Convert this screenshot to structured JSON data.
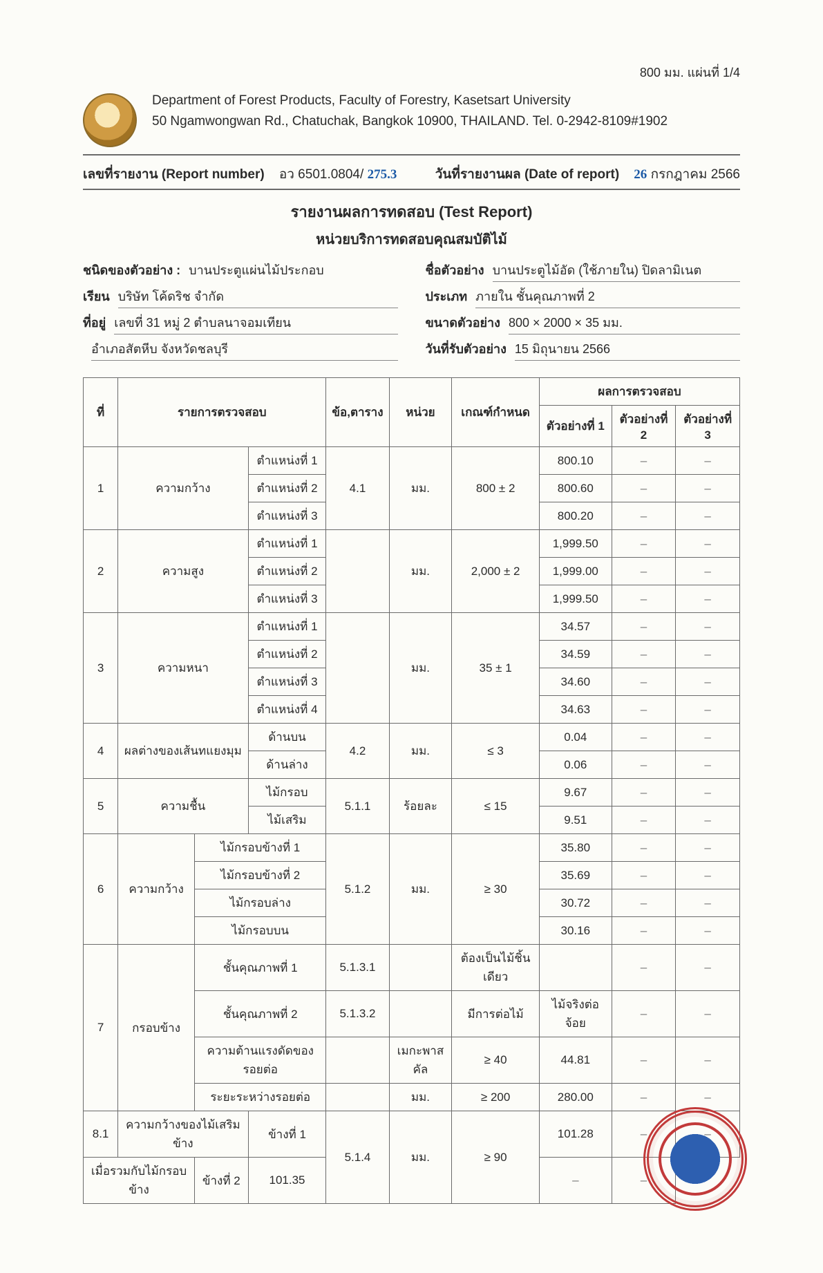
{
  "page_info": {
    "top_right": "800 มม.    แผ่นที่ 1/4"
  },
  "header": {
    "line1": "Department of Forest Products, Faculty of Forestry, Kasetsart University",
    "line2": "50 Ngamwongwan Rd., Chatuchak, Bangkok 10900, THAILAND. Tel. 0-2942-8109#1902"
  },
  "report_line": {
    "left_label": "เลขที่รายงาน (Report number)",
    "left_value_prefix": "อว 6501.0804/",
    "left_value_hand": "275.3",
    "right_label": "วันที่รายงานผล (Date of report)",
    "right_value_hand": "26",
    "right_value_suffix": " กรกฎาคม 2566"
  },
  "titles": {
    "t1": "รายงานผลการทดสอบ (Test Report)",
    "t2": "หน่วยบริการทดสอบคุณสมบัติไม้"
  },
  "meta_left": [
    {
      "label": "ชนิดของตัวอย่าง :",
      "value": "บานประตูแผ่นไม้ประกอบ"
    },
    {
      "label": "เรียน",
      "value": "บริษัท โค้ดริช จำกัด"
    },
    {
      "label": "ที่อยู่",
      "value": "เลขที่ 31 หมู่ 2 ตำบลนาจอมเทียน"
    },
    {
      "label": "",
      "value": "อำเภอสัตหีบ จังหวัดชลบุรี"
    }
  ],
  "meta_right": [
    {
      "label": "ชื่อตัวอย่าง",
      "value": "บานประตูไม้อัด (ใช้ภายใน) ปิดลามิเนต"
    },
    {
      "label": "ประเภท",
      "value": "ภายใน          ชั้นคุณภาพที่ 2"
    },
    {
      "label": "ขนาดตัวอย่าง",
      "value": "800 × 2000 × 35  มม."
    },
    {
      "label": "วันที่รับตัวอย่าง",
      "value": "15 มิถุนายน 2566"
    }
  ],
  "table": {
    "headers": {
      "no": "ที่",
      "item": "รายการตรวจสอบ",
      "clause": "ข้อ,ตาราง",
      "unit": "หน่วย",
      "criteria": "เกณฑ์กำหนด",
      "results": "ผลการตรวจสอบ",
      "s1": "ตัวอย่างที่ 1",
      "s2": "ตัวอย่างที่ 2",
      "s3": "ตัวอย่างที่ 3"
    },
    "rows": [
      {
        "no": "1",
        "item": "ความกว้าง",
        "sub": "ตำแหน่งที่ 1",
        "clause": "4.1",
        "unit": "มม.",
        "criteria": "800 ± 2",
        "s1": "800.10",
        "span_item": 3,
        "span_clause": 3,
        "span_unit": 3,
        "span_crit": 3
      },
      {
        "sub": "ตำแหน่งที่ 2",
        "s1": "800.60"
      },
      {
        "sub": "ตำแหน่งที่ 3",
        "s1": "800.20"
      },
      {
        "no": "2",
        "item": "ความสูง",
        "sub": "ตำแหน่งที่ 1",
        "clause": "",
        "unit": "มม.",
        "criteria": "2,000 ± 2",
        "s1": "1,999.50",
        "span_item": 3,
        "span_clause": 3,
        "span_unit": 3,
        "span_crit": 3
      },
      {
        "sub": "ตำแหน่งที่ 2",
        "s1": "1,999.00"
      },
      {
        "sub": "ตำแหน่งที่ 3",
        "s1": "1,999.50"
      },
      {
        "no": "3",
        "item": "ความหนา",
        "sub": "ตำแหน่งที่ 1",
        "clause": "",
        "unit": "มม.",
        "criteria": "35 ± 1",
        "s1": "34.57",
        "span_item": 4,
        "span_clause": 4,
        "span_unit": 4,
        "span_crit": 4
      },
      {
        "sub": "ตำแหน่งที่ 2",
        "s1": "34.59"
      },
      {
        "sub": "ตำแหน่งที่ 3",
        "s1": "34.60"
      },
      {
        "sub": "ตำแหน่งที่ 4",
        "s1": "34.63"
      },
      {
        "no": "4",
        "item": "ผลต่างของเส้นทแยงมุม",
        "sub": "ด้านบน",
        "clause": "4.2",
        "unit": "มม.",
        "criteria": "≤ 3",
        "s1": "0.04",
        "span_item": 2,
        "span_clause": 2,
        "span_unit": 2,
        "span_crit": 2
      },
      {
        "sub": "ด้านล่าง",
        "s1": "0.06"
      },
      {
        "no": "5",
        "item": "ความชื้น",
        "sub": "ไม้กรอบ",
        "clause": "5.1.1",
        "unit": "ร้อยละ",
        "criteria": "≤ 15",
        "s1": "9.67",
        "span_item": 2,
        "span_clause": 2,
        "span_unit": 2,
        "span_crit": 2
      },
      {
        "sub": "ไม้เสริม",
        "s1": "9.51"
      },
      {
        "no": "6",
        "item": "ความกว้าง",
        "sub2": "ไม้กรอบข้างที่ 1",
        "clause": "5.1.2",
        "unit": "มม.",
        "criteria": "≥ 30",
        "s1": "35.80",
        "span_item": 4,
        "span_clause": 4,
        "span_unit": 4,
        "span_crit": 4
      },
      {
        "sub2": "ไม้กรอบข้างที่ 2",
        "s1": "35.69"
      },
      {
        "sub2": "ไม้กรอบล่าง",
        "s1": "30.72"
      },
      {
        "sub2": "ไม้กรอบบน",
        "s1": "30.16"
      },
      {
        "no": "7",
        "item": "กรอบข้าง",
        "sub2": "ชั้นคุณภาพที่ 1",
        "clause": "5.1.3.1",
        "unit": "",
        "criteria": "ต้องเป็นไม้ชิ้นเดียว",
        "s1": "",
        "span_item": 4
      },
      {
        "sub2": "ชั้นคุณภาพที่ 2",
        "clause": "5.1.3.2",
        "unit": "",
        "criteria": "มีการต่อไม้",
        "s1": "ไม้จริงต่อจ้อย"
      },
      {
        "sub2": "ความต้านแรงดัดของรอยต่อ",
        "clause": "",
        "unit": "เมกะพาสคัล",
        "criteria": "≥ 40",
        "s1": "44.81"
      },
      {
        "sub2": "ระยะระหว่างรอยต่อ",
        "clause": "",
        "unit": "มม.",
        "criteria": "≥ 200",
        "s1": "280.00"
      },
      {
        "no": "8.1",
        "item": "ความกว้างของไม้เสริมข้าง",
        "sub": "ข้างที่ 1",
        "clause": "5.1.4",
        "unit": "มม.",
        "criteria": "≥ 90",
        "s1": "101.28",
        "span_clause": 2,
        "span_unit": 2,
        "span_crit": 2
      },
      {
        "item": "เมื่อรวมกับไม้กรอบข้าง",
        "sub": "ข้างที่ 2",
        "s1": "101.35"
      }
    ]
  }
}
